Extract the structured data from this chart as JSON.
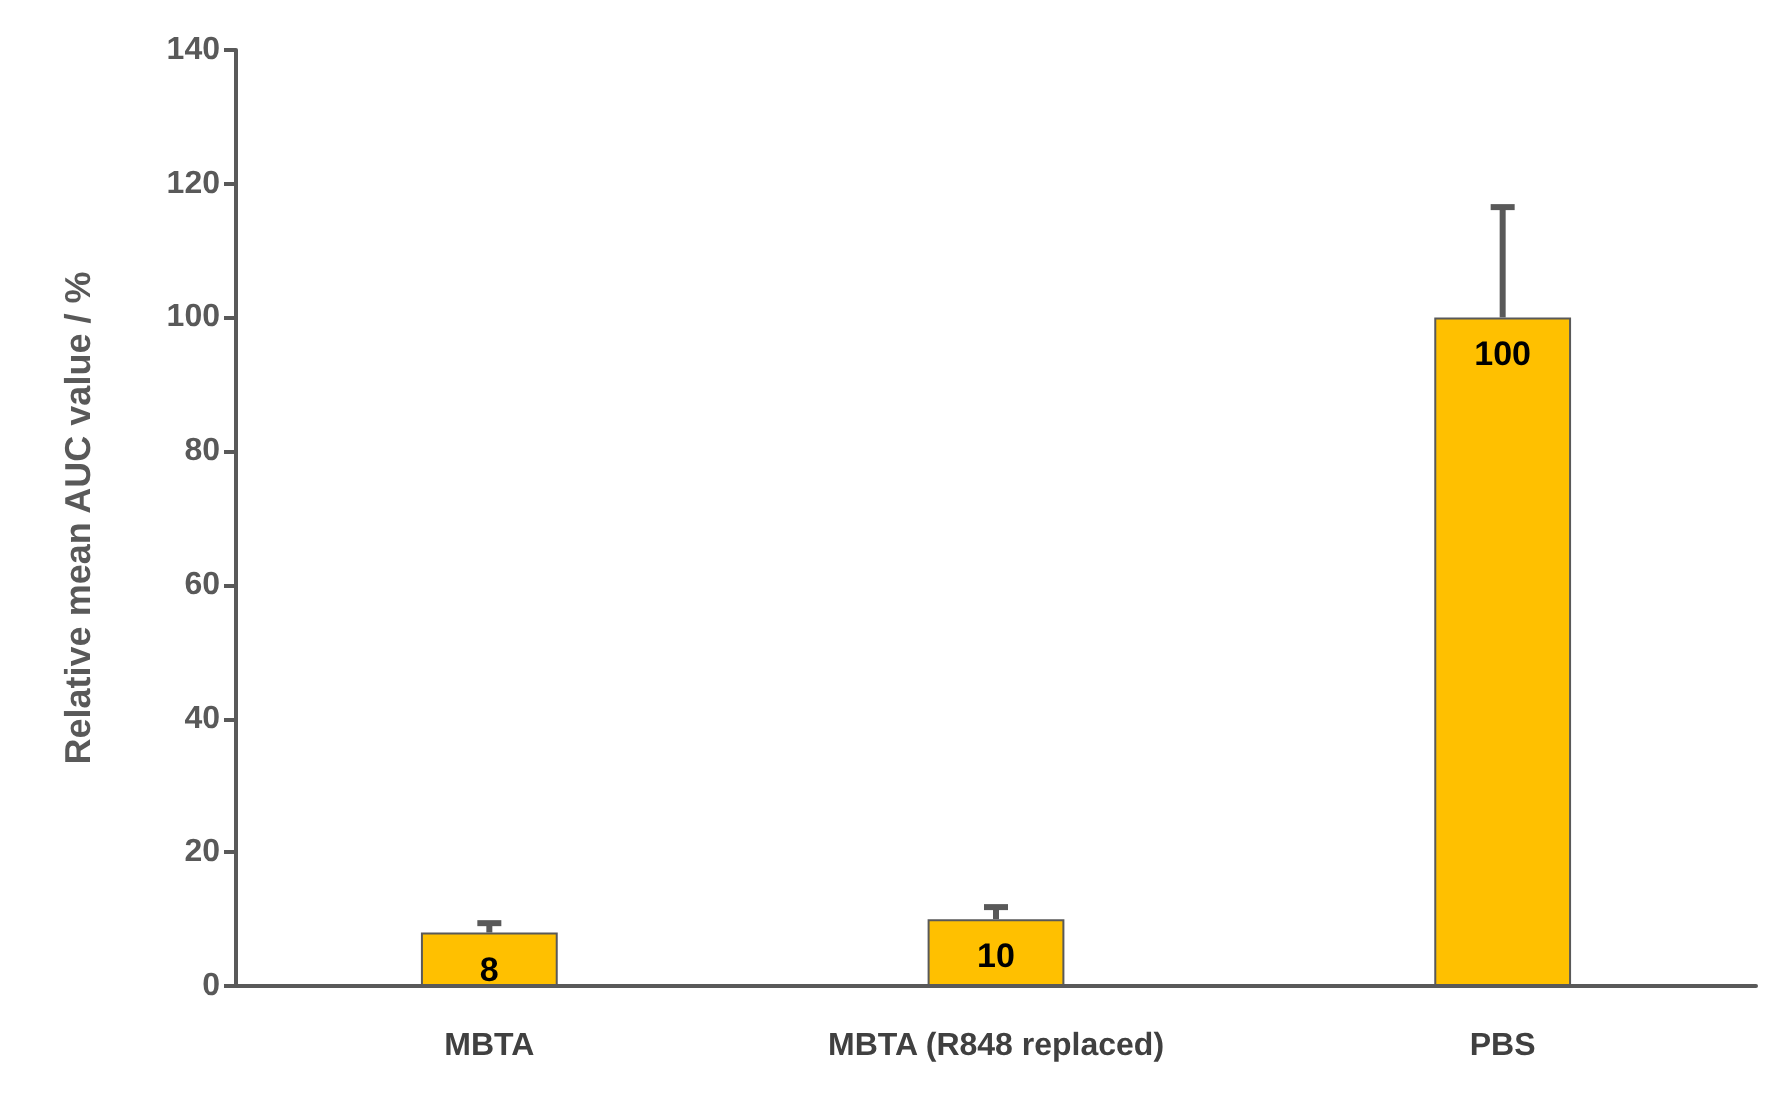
{
  "chart_data": {
    "type": "bar",
    "ylabel": "Relative mean AUC value / %",
    "categories": [
      "MBTA",
      "MBTA (R848 replaced)",
      "PBS"
    ],
    "values": [
      8,
      10,
      100
    ],
    "color": "#ffc000",
    "errors": [
      [
        8,
        9.4
      ],
      [
        10,
        11.8
      ],
      [
        100,
        116.5
      ]
    ],
    "ylim": [
      0,
      140
    ],
    "yticks": [
      0,
      20,
      40,
      60,
      80,
      100,
      120,
      140
    ],
    "grid": false,
    "data_labels": true
  }
}
